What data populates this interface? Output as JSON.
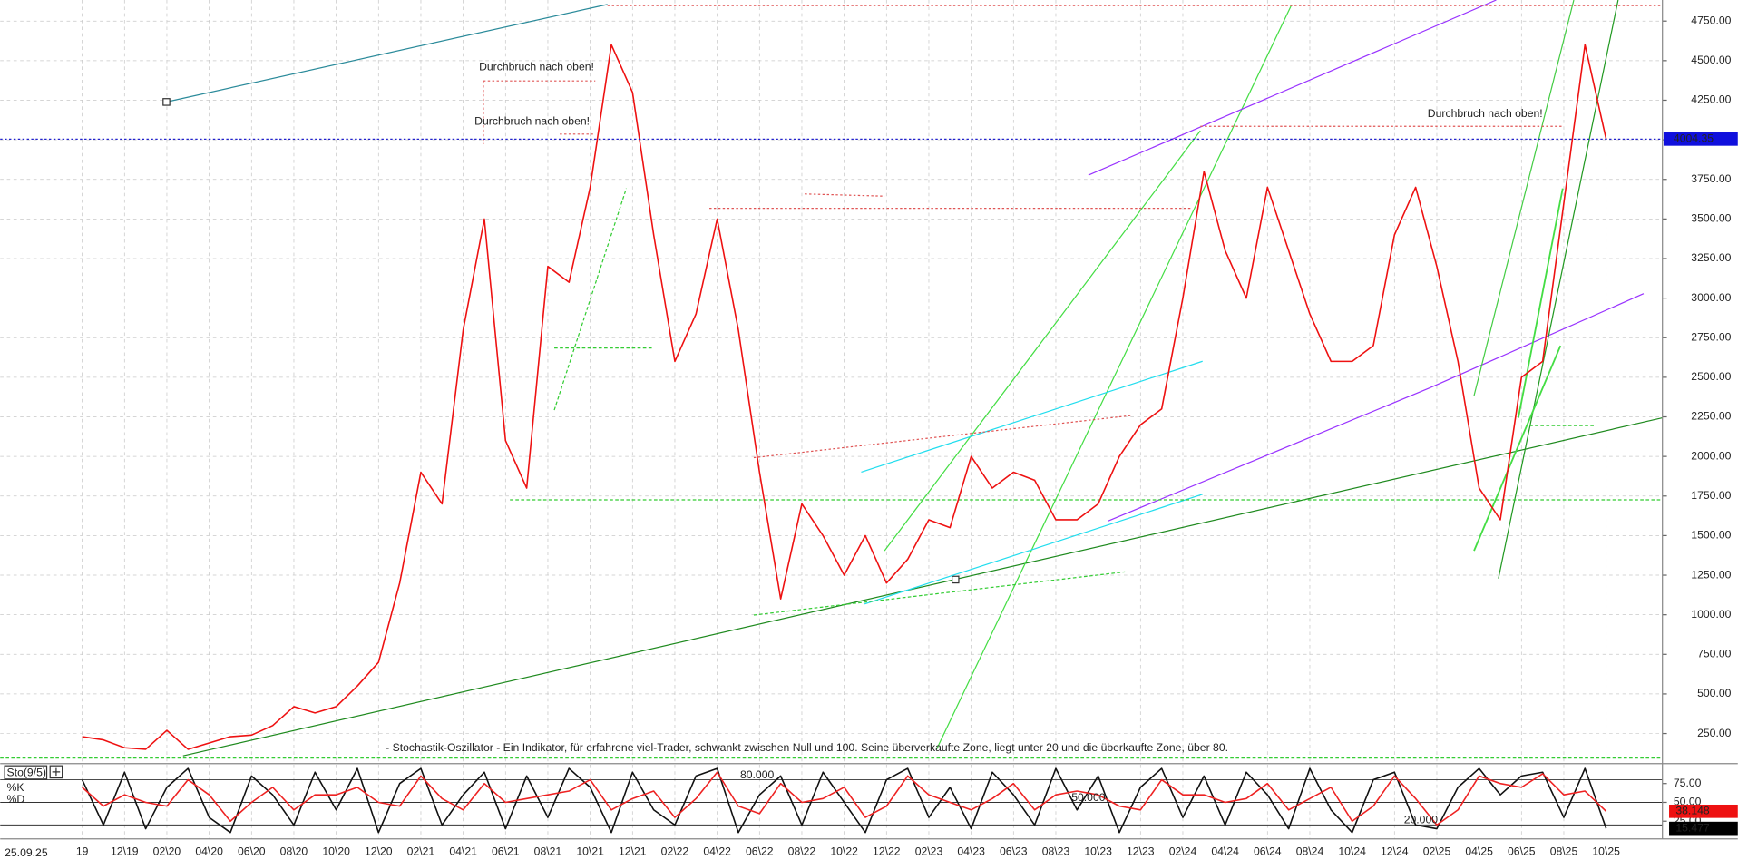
{
  "chart_data": [
    {
      "type": "line",
      "date_stamp": "25.09.25",
      "annotations": [
        "Durchbruch nach oben!",
        "Durchbruch nach oben!",
        "Durchbruch nach oben!",
        "- Stochastik-Oszillator - Ein Indikator, für erfahrene viel-Trader, schwankt zwischen Null und 100. Seine überverkaufte Zone, liegt unter 20 und die überkaufte Zone, über 80."
      ],
      "categories": [
        "19",
        null,
        "12\\19",
        null,
        "02\\20",
        null,
        "04\\20",
        null,
        "06\\20",
        null,
        "08\\20",
        null,
        "10\\20",
        null,
        "12\\20",
        null,
        "02\\21",
        null,
        "04\\21",
        null,
        "06\\21",
        null,
        "08\\21",
        null,
        "10\\21",
        null,
        "12\\21",
        null,
        "02\\22",
        null,
        "04\\22",
        null,
        "06\\22",
        null,
        "08\\22",
        null,
        "10\\22",
        null,
        "12\\22",
        null,
        "02\\23",
        null,
        "04\\23",
        null,
        "06\\23",
        null,
        "08\\23",
        null,
        "10\\23",
        null,
        "12\\23",
        null,
        "02\\24",
        null,
        "04\\24",
        null,
        "06\\24",
        null,
        "08\\24",
        null,
        "10\\24",
        null,
        "12\\24",
        null,
        "02\\25",
        null,
        "04\\25",
        null,
        "06\\25",
        null,
        "08\\25",
        null,
        "10\\25",
        null
      ],
      "series": [
        {
          "color": "#ee1111",
          "values": [
            230,
            210,
            160,
            150,
            270,
            150,
            190,
            230,
            240,
            300,
            420,
            380,
            420,
            550,
            700,
            1200,
            1900,
            1700,
            2800,
            3500,
            2100,
            1800,
            3200,
            3100,
            3700,
            4600,
            4300,
            3400,
            2600,
            2900,
            3500,
            2800,
            1900,
            1100,
            1700,
            1500,
            1250,
            1500,
            1200,
            1350,
            1600,
            1550,
            2000,
            1800,
            1900,
            1850,
            1600,
            1600,
            1700,
            2000,
            2200,
            2300,
            3000,
            3800,
            3300,
            3000,
            3700,
            3300,
            2900,
            2600,
            2600,
            2700,
            3400,
            3700,
            3200,
            2600,
            1800,
            1600,
            2500,
            2600,
            3600,
            4600,
            4004.35,
            null
          ]
        }
      ],
      "ylim": [
        60,
        4883
      ],
      "yticks": [
        {
          "value": 250,
          "label": "250.00"
        },
        {
          "value": 500,
          "label": "500.00"
        },
        {
          "value": 750,
          "label": "750.00"
        },
        {
          "value": 1000,
          "label": "1000.00"
        },
        {
          "value": 1250,
          "label": "1250.00"
        },
        {
          "value": 1500,
          "label": "1500.00"
        },
        {
          "value": 1750,
          "label": "1750.00"
        },
        {
          "value": 2000,
          "label": "2000.00"
        },
        {
          "value": 2250,
          "label": "2250.00"
        },
        {
          "value": 2500,
          "label": "2500.00"
        },
        {
          "value": 2750,
          "label": "2750.00"
        },
        {
          "value": 3000,
          "label": "3000.00"
        },
        {
          "value": 3250,
          "label": "3250.00"
        },
        {
          "value": 3500,
          "label": "3500.00"
        },
        {
          "value": 3750,
          "label": "3750.00"
        },
        {
          "value": 4000,
          "label": "4000.00"
        },
        {
          "value": 4250,
          "label": "4250.00"
        },
        {
          "value": 4500,
          "label": "4500.00"
        },
        {
          "value": 4750,
          "label": "4750.00"
        }
      ],
      "last_price": 4004.35,
      "grid": true
    },
    {
      "type": "line",
      "title": "Sto(9/5)",
      "series": [
        {
          "name": "%K",
          "color": "#111111",
          "values": [
            80,
            20,
            90,
            15,
            70,
            95,
            30,
            10,
            85,
            60,
            20,
            90,
            40,
            95,
            10,
            75,
            95,
            20,
            60,
            90,
            15,
            85,
            30,
            95,
            70,
            10,
            90,
            40,
            20,
            85,
            95,
            10,
            60,
            85,
            20,
            90,
            50,
            10,
            80,
            95,
            30,
            70,
            15,
            90,
            60,
            20,
            95,
            40,
            85,
            10,
            70,
            95,
            30,
            85,
            20,
            90,
            60,
            15,
            95,
            40,
            10,
            80,
            90,
            20,
            15,
            70,
            95,
            60,
            85,
            90,
            30,
            95,
            15.477,
            null
          ]
        },
        {
          "name": "%D",
          "color": "#ee2222",
          "values": [
            70,
            45,
            60,
            50,
            45,
            80,
            60,
            25,
            50,
            70,
            40,
            60,
            60,
            70,
            50,
            45,
            85,
            55,
            40,
            75,
            50,
            55,
            60,
            65,
            80,
            40,
            55,
            65,
            30,
            55,
            90,
            45,
            35,
            75,
            50,
            55,
            70,
            30,
            45,
            85,
            60,
            50,
            40,
            55,
            75,
            40,
            60,
            65,
            60,
            45,
            40,
            80,
            60,
            60,
            50,
            55,
            75,
            40,
            55,
            70,
            25,
            45,
            85,
            55,
            20,
            40,
            85,
            75,
            70,
            88,
            60,
            65,
            38.148,
            null
          ]
        }
      ],
      "ylim": [
        0,
        100
      ],
      "yticks": [
        {
          "value": 25,
          "label": "25.00"
        },
        {
          "value": 50,
          "label": "50.00"
        },
        {
          "value": 75,
          "label": "75.00"
        }
      ],
      "levels": [
        {
          "value": 80,
          "label": "80.000"
        },
        {
          "value": 50,
          "label": "50.000"
        },
        {
          "value": 20,
          "label": "20.000"
        }
      ]
    }
  ]
}
